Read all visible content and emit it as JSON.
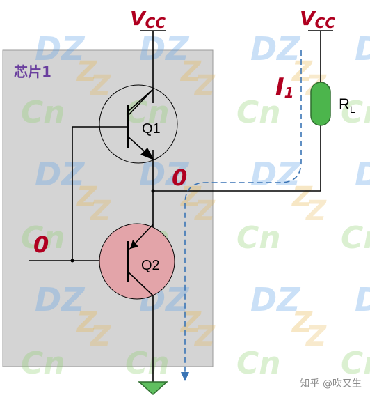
{
  "chip": {
    "label": "芯片1"
  },
  "supply": {
    "left": "V",
    "left_sub": "CC",
    "right": "V",
    "right_sub": "CC"
  },
  "transistors": {
    "q1": "Q1",
    "q2": "Q2"
  },
  "load": {
    "label": "R",
    "label_sub": "L"
  },
  "current": {
    "label": "I",
    "label_sub": "1"
  },
  "logic": {
    "output_value": "0",
    "input_value": "0"
  },
  "watermark": {
    "text_dz": "DZ",
    "text_z": "Z",
    "text_cn": "Cn"
  },
  "credit": {
    "text": "知乎 @吹又生"
  },
  "colors": {
    "chip_fill": "#d4d4d4",
    "accent_red": "#b00020",
    "q2_fill": "#e3a4a9",
    "resistor_fill": "#4cb54c",
    "current_path": "#3a74b5",
    "ground_fill": "#5fbf5f",
    "chip_label": "#6a3f9e"
  }
}
